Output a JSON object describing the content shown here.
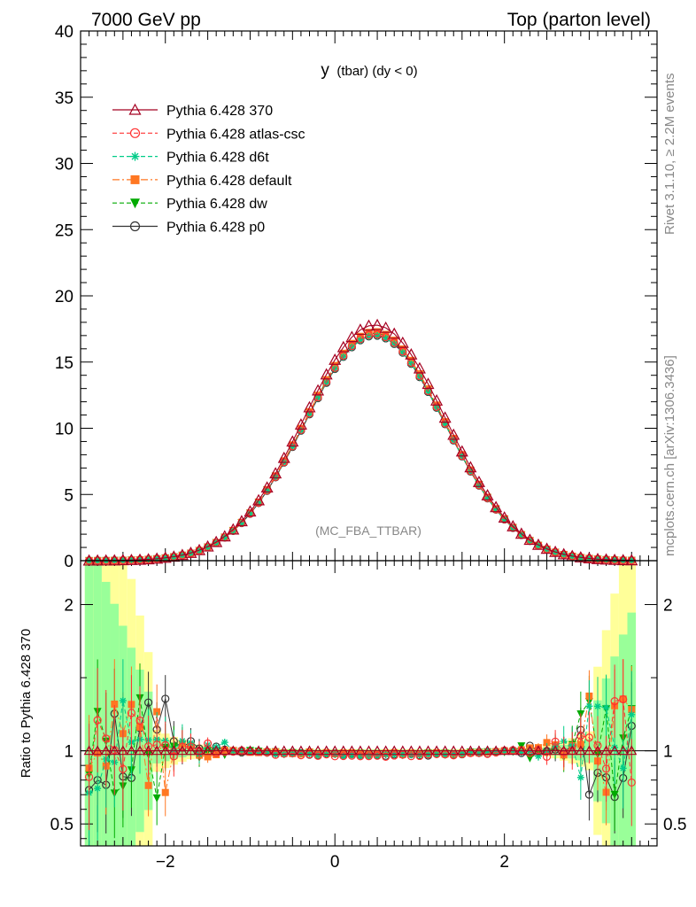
{
  "header": {
    "left": "7000 GeV pp",
    "right": "Top (parton level)"
  },
  "side_labels": {
    "rivet": "Rivet 3.1.10, ≥ 2.2M events",
    "mcplots": "mcplots.cern.ch [arXiv:1306.3436]"
  },
  "chart_data": {
    "type": "line",
    "title": "y (tbar) (dy < 0)",
    "title_main": "y",
    "title_sub": "(tbar) (dy < 0)",
    "analysis": "(MC_FBA_TTBAR)",
    "main": {
      "ylim": [
        0,
        40
      ],
      "yticks": [
        "0",
        "5",
        "10",
        "15",
        "20",
        "25",
        "30",
        "35",
        "40"
      ],
      "xlim": [
        -3.0,
        3.8
      ],
      "xticks": [
        "−2",
        "0",
        "2"
      ]
    },
    "ratio": {
      "ylabel": "Ratio to Pythia 6.428 370",
      "ylim": [
        0.35,
        2.3
      ],
      "yticks": [
        "0.5",
        "1",
        "2"
      ]
    },
    "colors": {
      "370": "#a50021",
      "atlas_csc": "#ff3333",
      "d6t": "#00cc88",
      "default": "#ff7722",
      "dw": "#00aa00",
      "p0": "#333333",
      "band_yellow": "#ffff99",
      "band_green": "#99ff99"
    },
    "series": [
      {
        "name": "Pythia 6.428 370",
        "key": "370",
        "marker": "open-triangle",
        "dash": "solid",
        "peak": 17.8,
        "ratio_shift": 0.0
      },
      {
        "name": "Pythia 6.428 atlas-csc",
        "key": "atlas_csc",
        "marker": "open-circle",
        "dash": "dashed",
        "peak": 17.1,
        "ratio_shift": -0.035
      },
      {
        "name": "Pythia 6.428 d6t",
        "key": "d6t",
        "marker": "star",
        "dash": "dashed",
        "peak": 17.0,
        "ratio_shift": -0.03
      },
      {
        "name": "Pythia 6.428 default",
        "key": "default",
        "marker": "filled-square",
        "dash": "dashdot",
        "peak": 17.3,
        "ratio_shift": -0.02
      },
      {
        "name": "Pythia 6.428 dw",
        "key": "dw",
        "marker": "filled-down-triangle",
        "dash": "dashed",
        "peak": 17.2,
        "ratio_shift": -0.025
      },
      {
        "name": "Pythia 6.428 p0",
        "key": "p0",
        "marker": "open-circle",
        "dash": "solid",
        "peak": 17.0,
        "ratio_shift": -0.03
      }
    ],
    "shape": {
      "mean": 0.47,
      "sigma": 0.83,
      "x_min": -2.9,
      "x_max": 3.55,
      "bin_width": 0.1
    }
  }
}
